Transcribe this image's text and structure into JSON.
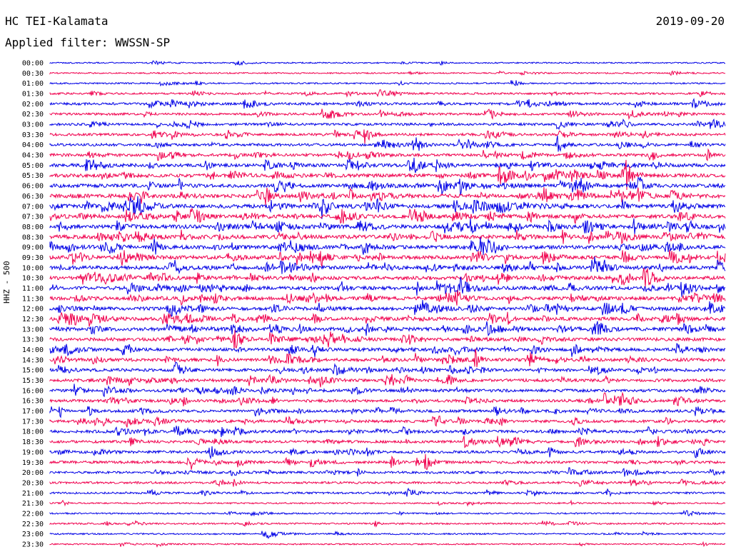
{
  "header": {
    "station": "HC TEI-Kalamata",
    "date": "2019-09-20",
    "filter_label": "Applied filter: WWSSN-SP"
  },
  "chart_data": {
    "type": "line",
    "title": "HC TEI-Kalamata",
    "subtitle": "Applied filter: WWSSN-SP",
    "date": "2019-09-20",
    "ylabel": "HHZ - 500",
    "xlabel": "",
    "trace_minutes": 30,
    "row_labels": [
      "00:00",
      "00:30",
      "01:00",
      "01:30",
      "02:00",
      "02:30",
      "03:00",
      "03:30",
      "04:00",
      "04:30",
      "05:00",
      "05:30",
      "06:00",
      "06:30",
      "07:00",
      "07:30",
      "08:00",
      "08:30",
      "09:00",
      "09:30",
      "10:00",
      "10:30",
      "11:00",
      "11:30",
      "12:00",
      "12:30",
      "13:00",
      "13:30",
      "14:00",
      "14:30",
      "15:00",
      "15:30",
      "16:00",
      "16:30",
      "17:00",
      "17:30",
      "18:00",
      "18:30",
      "19:00",
      "19:30",
      "20:00",
      "20:30",
      "21:00",
      "21:30",
      "22:00",
      "22:30",
      "23:00",
      "23:30"
    ],
    "series": [
      {
        "name": "",
        "color": "#0000e6"
      },
      {
        "name": "",
        "color": "#f0004e"
      }
    ],
    "activity": [
      0.15,
      0.15,
      0.2,
      0.35,
      0.5,
      0.45,
      0.5,
      0.5,
      0.55,
      0.6,
      0.75,
      0.8,
      0.85,
      0.9,
      0.9,
      0.85,
      0.9,
      0.9,
      0.85,
      0.85,
      0.85,
      0.8,
      0.85,
      0.8,
      0.8,
      0.8,
      0.8,
      0.75,
      0.7,
      0.7,
      0.65,
      0.65,
      0.65,
      0.6,
      0.6,
      0.6,
      0.6,
      0.55,
      0.55,
      0.55,
      0.45,
      0.4,
      0.35,
      0.2,
      0.2,
      0.25,
      0.2,
      0.15
    ]
  }
}
